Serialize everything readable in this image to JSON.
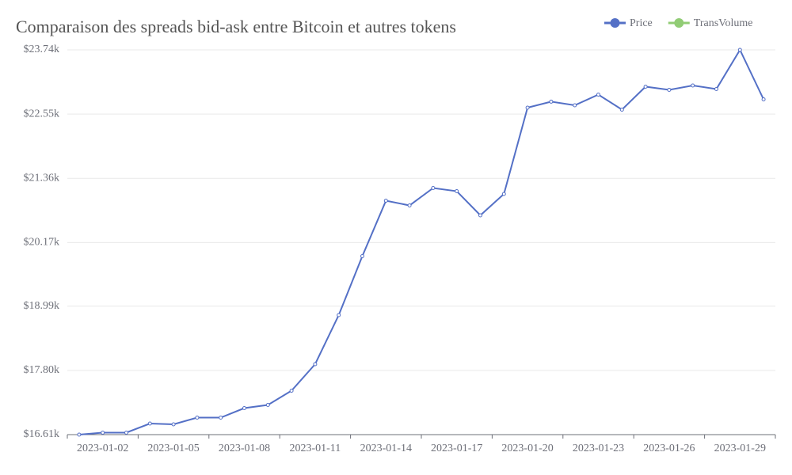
{
  "chart_data": {
    "type": "line",
    "title": "Comparaison des spreads bid-ask entre Bitcoin et autres tokens",
    "categories": [
      "2023-01-01",
      "2023-01-02",
      "2023-01-03",
      "2023-01-04",
      "2023-01-05",
      "2023-01-06",
      "2023-01-07",
      "2023-01-08",
      "2023-01-09",
      "2023-01-10",
      "2023-01-11",
      "2023-01-12",
      "2023-01-13",
      "2023-01-14",
      "2023-01-15",
      "2023-01-16",
      "2023-01-17",
      "2023-01-18",
      "2023-01-19",
      "2023-01-20",
      "2023-01-21",
      "2023-01-22",
      "2023-01-23",
      "2023-01-24",
      "2023-01-25",
      "2023-01-26",
      "2023-01-27",
      "2023-01-28",
      "2023-01-29",
      "2023-01-30"
    ],
    "series": [
      {
        "name": "Price",
        "color": "#5470c6",
        "values": [
          16610,
          16647,
          16647,
          16815,
          16801,
          16925,
          16925,
          17101,
          17160,
          17424,
          17916,
          18825,
          19918,
          20945,
          20857,
          21180,
          21121,
          20674,
          21070,
          22669,
          22780,
          22713,
          22911,
          22633,
          23058,
          23000,
          23080,
          23014,
          23740,
          22823
        ]
      },
      {
        "name": "TransVolume",
        "color": "#91cc75",
        "values": [
          null,
          null,
          null,
          null,
          null,
          null,
          null,
          null,
          null,
          null,
          null,
          null,
          null,
          null,
          null,
          null,
          null,
          null,
          null,
          null,
          null,
          null,
          null,
          null,
          null,
          null,
          null,
          null,
          null,
          null
        ]
      }
    ],
    "ylim": [
      16610,
      23740
    ],
    "yticks": [
      {
        "value": 16610,
        "label": "$16.61k"
      },
      {
        "value": 17800,
        "label": "$17.80k"
      },
      {
        "value": 18990,
        "label": "$18.99k"
      },
      {
        "value": 20170,
        "label": "$20.17k"
      },
      {
        "value": 21360,
        "label": "$21.36k"
      },
      {
        "value": 22550,
        "label": "$22.55k"
      },
      {
        "value": 23740,
        "label": "$23.74k"
      }
    ],
    "grid": true
  }
}
